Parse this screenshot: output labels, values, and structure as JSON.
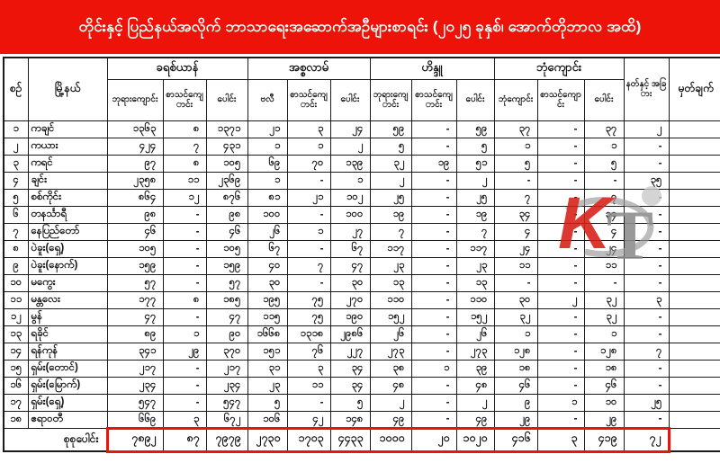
{
  "title": "တိုင်းနှင့် ပြည်နယ်အလိုက် ဘာသာရေးအဆောက်အဦများစာရင်း (၂၀၂၅ ခုနှစ်၊ အောက်တိုဘာလ အထိ)",
  "colors": {
    "accent_red": "#ed1309",
    "text": "#111111",
    "grid": "#1a1a1a"
  },
  "watermark_text": "Kt",
  "table": {
    "headers": {
      "sn": "စဉ်",
      "township": "မြို့နယ်",
      "groups": [
        {
          "label": "ခရစ်ယာန်",
          "cols": [
            "ဘုရားကျောင်း",
            "စာသင်ကျောင်း",
            "ပေါင်း"
          ]
        },
        {
          "label": "အစ္စလာမ်",
          "cols": [
            "ဗလီ",
            "စာသင်ကျောင်း",
            "ပေါင်း"
          ]
        },
        {
          "label": "ဟိန္ဒူ",
          "cols": [
            "ဘုရားကျောင်း",
            "စာသင်ကျောင်း",
            "ပေါင်း"
          ]
        },
        {
          "label": "ဘုံကျောင်း",
          "cols": [
            "ဘုံကျောင်း",
            "စာသင်ကျောင်း",
            "ပေါင်း"
          ]
        }
      ],
      "nat": "နတ်နှင့် အခြား",
      "remark": "မှတ်ချက်"
    },
    "rows": [
      {
        "no": "၁",
        "name": "ကချင်",
        "cells": [
          "၁၃၆၃",
          "၈",
          "၁၃၇၁",
          "၂၁",
          "၃",
          "၂၄",
          "၅၉",
          "-",
          "၅၉",
          "၃၇",
          "-",
          "၃၇",
          "၂"
        ],
        "remark": ""
      },
      {
        "no": "၂",
        "name": "ကယား",
        "cells": [
          "၄၂၄",
          "၇",
          "၄၃၁",
          "၁",
          "၁",
          "၂",
          "၅",
          "-",
          "၅",
          "၁",
          "-",
          "၁",
          "-"
        ],
        "remark": ""
      },
      {
        "no": "၃",
        "name": "ကရင်",
        "cells": [
          "၉၇",
          "၈",
          "၁၀၅",
          "၆၉",
          "၇၀",
          "၁၃၉",
          "၃၂",
          "၁၉",
          "၅၁",
          "၅",
          "-",
          "၅",
          "-"
        ],
        "remark": ""
      },
      {
        "no": "၄",
        "name": "ချင်း",
        "cells": [
          "၂၃၅၈",
          "၁၁",
          "၂၃၆၉",
          "၁",
          "-",
          "၁",
          "၂",
          "-",
          "၂",
          "-",
          "-",
          "-",
          "၃၅"
        ],
        "remark": ""
      },
      {
        "no": "၅",
        "name": "စစ်ကိုင်း",
        "cells": [
          "၈၆၄",
          "၁၂",
          "၈၇၆",
          "၈၁",
          "၂၁",
          "၁၀၂",
          "၂၅",
          "-",
          "၂၅",
          "၇",
          "-",
          "၇",
          "-"
        ],
        "remark": ""
      },
      {
        "no": "၆",
        "name": "တနင်္သာရီ",
        "cells": [
          "၉၈",
          "-",
          "၉၈",
          "၁၀၀",
          "-",
          "၁၀၀",
          "၁၉",
          "-",
          "၁၉",
          "၃၄",
          "-",
          "၃၄",
          "-"
        ],
        "remark": ""
      },
      {
        "no": "၇",
        "name": "နေပြည်တော်",
        "cells": [
          "၄၆",
          "-",
          "၄၆",
          "၂၆",
          "၁",
          "၂၇",
          "၇",
          "-",
          "၇",
          "၄",
          "-",
          "၄",
          "-"
        ],
        "remark": ""
      },
      {
        "no": "၈",
        "name": "ပဲခူး(ရှေ့)",
        "cells": [
          "၁၀၅",
          "-",
          "၁၀၅",
          "၆၇",
          "-",
          "၆၇",
          "၁၁၇",
          "-",
          "၁၁၇",
          "၂၄",
          "-",
          "၂၄",
          "-"
        ],
        "remark": ""
      },
      {
        "no": "၉",
        "name": "ပဲခူး(နောက်)",
        "cells": [
          "၁၅၉",
          "-",
          "၁၅၉",
          "၄၀",
          "၇",
          "၄၇",
          "၂၃",
          "-",
          "၂၃",
          "၁၁",
          "-",
          "၁၁",
          "-"
        ],
        "remark": ""
      },
      {
        "no": "၁၀",
        "name": "မကွေး",
        "cells": [
          "၅၇",
          "-",
          "၅၇",
          "၃၀",
          "-",
          "၃၀",
          "၁၃",
          "-",
          "၁၃",
          "-",
          "-",
          "-",
          "-"
        ],
        "remark": ""
      },
      {
        "no": "၁၁",
        "name": "မန္တလေး",
        "cells": [
          "၁၇၇",
          "၈",
          "၁၈၅",
          "၁၉၅",
          "၇၅",
          "၂၇၀",
          "၁၁၀",
          "-",
          "၁၁၀",
          "၃၀",
          "၂",
          "၃၂",
          "၃"
        ],
        "remark": ""
      },
      {
        "no": "၁၂",
        "name": "မွန်",
        "cells": [
          "၄၇",
          "-",
          "၄၇",
          "၁၁၅",
          "၇၅",
          "၁၉၀",
          "၁၅၂",
          "-",
          "၁၅၂",
          "၃၂",
          "-",
          "၃၂",
          "-"
        ],
        "remark": ""
      },
      {
        "no": "၁၃",
        "name": "ရခိုင်",
        "cells": [
          "၈၉",
          "၁",
          "၉၀",
          "၁၆၆၈",
          "၁၃၁၈",
          "၂၉၈၆",
          "၂၆",
          "-",
          "၂၆",
          "၁",
          "-",
          "၁",
          "-"
        ],
        "remark": ""
      },
      {
        "no": "၁၄",
        "name": "ရန်ကုန်",
        "cells": [
          "၃၄၁",
          "၂၉",
          "၃၇၀",
          "၁၅၁",
          "၇၆",
          "၂၂၇",
          "၂၇၃",
          "-",
          "၂၇၃",
          "၁၂၈",
          "-",
          "၁၂၈",
          "၇"
        ],
        "remark": ""
      },
      {
        "no": "၁၅",
        "name": "ရှမ်း(တောင်)",
        "cells": [
          "၂၁၇",
          "-",
          "၂၁၇",
          "၃၁",
          "၃",
          "၃၄",
          "၃၈",
          "၁",
          "၃၉",
          "၁၈",
          "-",
          "၁၈",
          "-"
        ],
        "remark": ""
      },
      {
        "no": "၁၆",
        "name": "ရှမ်း(မြောက်)",
        "cells": [
          "၂၃၄",
          "-",
          "၂၃၄",
          "၂၃",
          "၁၁",
          "၃၄",
          "၄၈",
          "-",
          "၄၈",
          "၄၆",
          "-",
          "၄၆",
          "-"
        ],
        "remark": ""
      },
      {
        "no": "၁၇",
        "name": "ရှမ်း(ရှေ့)",
        "cells": [
          "၅၄၇",
          "-",
          "၅၄၇",
          "၅",
          "-",
          "၅",
          "၂",
          "-",
          "၂",
          "၉",
          "၁",
          "၁၀",
          "၂၅"
        ],
        "remark": ""
      },
      {
        "no": "၁၈",
        "name": "ဧရာဝတီ",
        "cells": [
          "၆၆၉",
          "၃",
          "၆၇၂",
          "၁၀၆",
          "၄၂",
          "၁၄၈",
          "၄၉",
          "-",
          "၄၉",
          "၂၉",
          "-",
          "၂၉",
          "-"
        ],
        "remark": ""
      }
    ],
    "total": {
      "label": "စုစုပေါင်း",
      "cells": [
        "၇၈၉၂",
        "၈၇",
        "၇၉၇၉",
        "၂၇၃၀",
        "၁၇၀၃",
        "၄၄၃၃",
        "၁၀၀၀",
        "၂၀",
        "၁၀၂၀",
        "၄၁၆",
        "၃",
        "၄၁၉",
        "၇၂"
      ],
      "remark": ""
    }
  }
}
